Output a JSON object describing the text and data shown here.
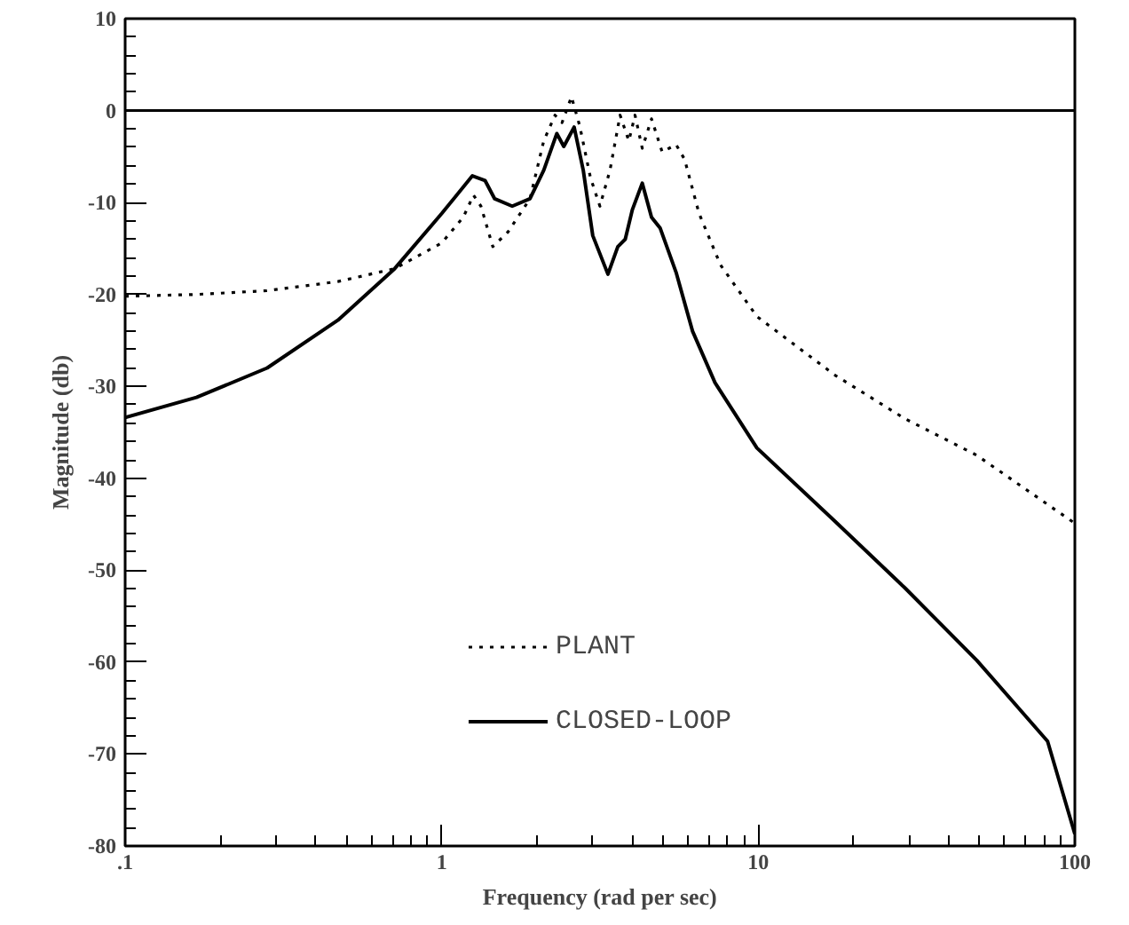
{
  "chart_data": {
    "type": "line",
    "xlabel": "Frequency (rad per sec)",
    "ylabel": "Magnitude (db)",
    "log": "x",
    "xlim": [
      0.1,
      100
    ],
    "xticks": [
      {
        "value": 0.1,
        "label": ".1"
      },
      1,
      10,
      100
    ],
    "ylim": [
      -80,
      10
    ],
    "yticks": [
      -80,
      -70,
      -60,
      -50,
      -40,
      -30,
      -20,
      -10,
      0,
      10
    ],
    "grid": false,
    "legend": "bottom",
    "marker": "none",
    "ref_lines": [
      {
        "axis": "y",
        "value": 0,
        "color": "#000000",
        "line_style": "solid"
      }
    ],
    "series": [
      {
        "name": "PLANT",
        "color": "#000000",
        "line_style": "dotted",
        "x": [
          0.1,
          0.168,
          0.28,
          0.47,
          0.71,
          1.0,
          1.17,
          1.26,
          1.33,
          1.45,
          1.62,
          1.9,
          2.1,
          2.28,
          2.4,
          2.57,
          2.73,
          2.95,
          3.16,
          3.4,
          3.66,
          3.9,
          4.08,
          4.3,
          4.6,
          4.97,
          5.5,
          5.85,
          6.5,
          7.6,
          9.9,
          17.5,
          29,
          49,
          100
        ],
        "values": [
          -20.2,
          -20.0,
          -19.6,
          -18.6,
          -17.2,
          -14.4,
          -11.6,
          -9.2,
          -10.4,
          -14.8,
          -13.2,
          -9.6,
          -3.3,
          -0.5,
          -1.3,
          1.5,
          -1.7,
          -7.3,
          -10.4,
          -6.5,
          -0.5,
          -3.3,
          -0.5,
          -4.1,
          -0.9,
          -4.5,
          -3.7,
          -5.3,
          -11.2,
          -16.8,
          -22.4,
          -28.8,
          -33.5,
          -37.5,
          -44.9
        ]
      },
      {
        "name": "CLOSED-LOOP",
        "color": "#000000",
        "line_style": "solid",
        "x": [
          0.1,
          0.168,
          0.281,
          0.47,
          0.71,
          1.0,
          1.25,
          1.37,
          1.47,
          1.67,
          1.9,
          2.1,
          2.31,
          2.43,
          2.62,
          2.8,
          3.0,
          3.35,
          3.6,
          3.8,
          4.0,
          4.3,
          4.6,
          4.9,
          5.5,
          6.2,
          7.3,
          9.9,
          17.5,
          29,
          49,
          82,
          100
        ],
        "values": [
          -33.4,
          -31.2,
          -28.0,
          -22.8,
          -17.2,
          -11.2,
          -7.1,
          -7.6,
          -9.6,
          -10.4,
          -9.6,
          -6.5,
          -2.5,
          -3.9,
          -1.8,
          -6.5,
          -13.6,
          -17.8,
          -14.8,
          -14.0,
          -10.8,
          -7.9,
          -11.6,
          -12.8,
          -17.6,
          -24.0,
          -29.6,
          -36.7,
          -44.7,
          -51.9,
          -59.8,
          -68.6,
          -78.7
        ]
      }
    ]
  }
}
